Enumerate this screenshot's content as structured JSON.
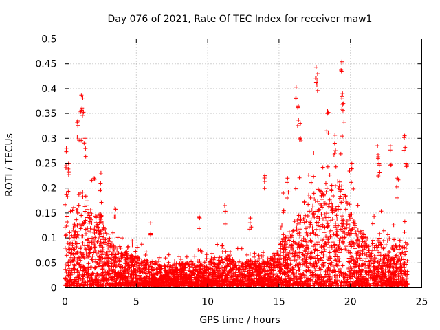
{
  "chart_data": {
    "type": "scatter",
    "title": "Day 076 of 2021, Rate Of TEC Index for receiver maw1",
    "xlabel": "GPS time / hours",
    "ylabel": "ROTI / TECUs",
    "xlim": [
      0,
      25
    ],
    "ylim": [
      0,
      0.5
    ],
    "x_ticks": [
      0,
      5,
      10,
      15,
      20,
      25
    ],
    "x_tick_labels": [
      "0",
      "5",
      "10",
      "15",
      "20",
      "25"
    ],
    "y_ticks": [
      0,
      0.05,
      0.1,
      0.15,
      0.2,
      0.25,
      0.3,
      0.35,
      0.4,
      0.45,
      0.5
    ],
    "y_tick_labels": [
      "0",
      "0.05",
      "0.1",
      "0.15",
      "0.2",
      "0.25",
      "0.3",
      "0.35",
      "0.4",
      "0.45",
      "0.5"
    ],
    "grid": true,
    "marker": "+",
    "color": "#ff0000",
    "series": [
      {
        "name": "ROTI",
        "envelope": {
          "hours": [
            0,
            0.5,
            1,
            1.5,
            2,
            2.5,
            3,
            3.5,
            4,
            5,
            6,
            7,
            8,
            9,
            10,
            11,
            12,
            13,
            14,
            14.5,
            15,
            15.5,
            16,
            16.5,
            17,
            17.5,
            18,
            18.5,
            19,
            19.5,
            20,
            20.5,
            21,
            21.5,
            22,
            22.5,
            23,
            23.5,
            24
          ],
          "typical_max_roti": [
            0.14,
            0.1,
            0.2,
            0.18,
            0.14,
            0.15,
            0.1,
            0.08,
            0.07,
            0.06,
            0.05,
            0.04,
            0.045,
            0.05,
            0.05,
            0.06,
            0.05,
            0.05,
            0.05,
            0.06,
            0.08,
            0.1,
            0.13,
            0.15,
            0.14,
            0.18,
            0.2,
            0.2,
            0.22,
            0.2,
            0.15,
            0.12,
            0.1,
            0.09,
            0.1,
            0.09,
            0.08,
            0.08,
            0.09
          ]
        },
        "peaks": [
          {
            "x": 0.1,
            "y": 0.28
          },
          {
            "x": 0.25,
            "y": 0.25
          },
          {
            "x": 0.9,
            "y": 0.335
          },
          {
            "x": 1.15,
            "y": 0.387
          },
          {
            "x": 1.25,
            "y": 0.381
          },
          {
            "x": 1.4,
            "y": 0.3
          },
          {
            "x": 2.5,
            "y": 0.21
          },
          {
            "x": 3.5,
            "y": 0.16
          },
          {
            "x": 6.0,
            "y": 0.13
          },
          {
            "x": 9.4,
            "y": 0.143
          },
          {
            "x": 11.2,
            "y": 0.165
          },
          {
            "x": 13.0,
            "y": 0.14
          },
          {
            "x": 14.0,
            "y": 0.225
          },
          {
            "x": 15.3,
            "y": 0.19
          },
          {
            "x": 15.6,
            "y": 0.22
          },
          {
            "x": 16.2,
            "y": 0.403
          },
          {
            "x": 16.35,
            "y": 0.365
          },
          {
            "x": 16.5,
            "y": 0.33
          },
          {
            "x": 17.6,
            "y": 0.443
          },
          {
            "x": 17.7,
            "y": 0.43
          },
          {
            "x": 18.4,
            "y": 0.355
          },
          {
            "x": 18.9,
            "y": 0.29
          },
          {
            "x": 19.4,
            "y": 0.454
          },
          {
            "x": 19.45,
            "y": 0.39
          },
          {
            "x": 19.5,
            "y": 0.37
          },
          {
            "x": 20.1,
            "y": 0.25
          },
          {
            "x": 21.9,
            "y": 0.285
          },
          {
            "x": 22.0,
            "y": 0.25
          },
          {
            "x": 22.8,
            "y": 0.285
          },
          {
            "x": 23.3,
            "y": 0.22
          },
          {
            "x": 23.8,
            "y": 0.305
          },
          {
            "x": 23.9,
            "y": 0.25
          }
        ]
      }
    ]
  }
}
